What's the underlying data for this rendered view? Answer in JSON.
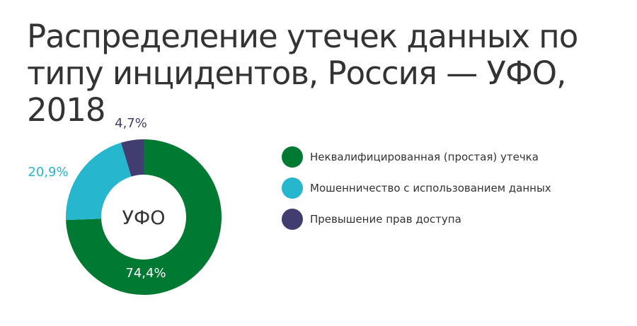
{
  "chart_data": {
    "type": "pie",
    "title": "Распределение утечек данных по типу инцидентов, Россия — УФО, 2018",
    "center_label": "УФО",
    "categories": [
      "Неквалифицированная (простая) утечка",
      "Мошенничество с использованием данных",
      "Превышение прав доступа"
    ],
    "values": [
      74.4,
      20.9,
      4.7
    ],
    "labels": [
      "74,4%",
      "20,9%",
      "4,7%"
    ],
    "colors": [
      "#007a33",
      "#26b7cf",
      "#413d70"
    ],
    "label_colors": [
      "#ffffff",
      "#26b7cf",
      "#413d70"
    ],
    "donut": true,
    "legend_placement": "right"
  }
}
